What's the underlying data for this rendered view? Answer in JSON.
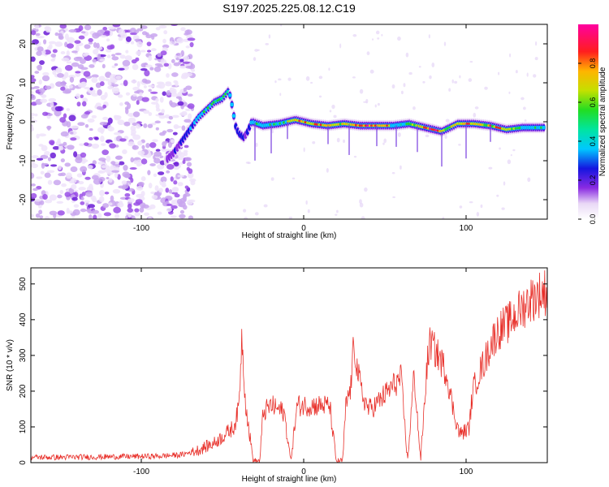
{
  "title": "S197.2025.225.08.12.C19",
  "chart_data": [
    {
      "type": "heatmap",
      "xlabel": "Height of straight line (km)",
      "ylabel": "Frequency (Hz)",
      "xlim": [
        -168,
        150
      ],
      "ylim": [
        -25,
        25
      ],
      "xticks": [
        -100,
        0,
        100
      ],
      "xtick_labels": [
        "-100",
        "0",
        "100"
      ],
      "yticks": [
        -20,
        -10,
        0,
        10,
        20
      ],
      "ytick_labels": [
        "-20",
        "-10",
        "0",
        "10",
        "20"
      ],
      "colorbar": {
        "label": "Normalized spectral amplitude",
        "range": [
          0,
          1
        ],
        "ticks": [
          0.0,
          0.2,
          0.4,
          0.6,
          0.8
        ],
        "tick_labels": [
          "0.0",
          "0.2",
          "0.4",
          "0.6",
          "0.8"
        ]
      },
      "ridge": {
        "x": [
          -85,
          -80,
          -75,
          -70,
          -65,
          -60,
          -55,
          -50,
          -46,
          -44,
          -42,
          -40,
          -37,
          -35,
          -32,
          -25,
          -15,
          -5,
          5,
          15,
          25,
          35,
          45,
          55,
          65,
          75,
          85,
          95,
          105,
          115,
          125,
          135,
          148
        ],
        "freq": [
          -10,
          -8,
          -5,
          -2,
          1,
          3,
          5,
          6,
          8,
          4,
          -1,
          -3,
          -4,
          -3,
          0,
          -1,
          -0.5,
          0.5,
          -0.5,
          -1,
          -0.5,
          -1,
          -1,
          -1,
          -0.5,
          -1.5,
          -2.5,
          -0.5,
          -0.5,
          -1,
          -2,
          -1.5,
          -1.5
        ]
      },
      "ridge_amplitude": {
        "x": [
          -85,
          -70,
          -60,
          -50,
          -45,
          -40,
          -35,
          -30,
          -20,
          -10,
          -5,
          0,
          10,
          20,
          30,
          40,
          50,
          55,
          60,
          70,
          75,
          80,
          90,
          100,
          110,
          120,
          130,
          148
        ],
        "amp": [
          0.15,
          0.35,
          0.55,
          0.6,
          0.45,
          0.3,
          0.3,
          0.5,
          0.5,
          0.6,
          0.75,
          0.85,
          0.8,
          0.75,
          0.75,
          0.95,
          0.9,
          0.5,
          0.55,
          0.65,
          0.9,
          0.95,
          0.65,
          0.85,
          0.7,
          0.8,
          0.6,
          0.5
        ]
      }
    },
    {
      "type": "line",
      "xlabel": "Height of straight line (km)",
      "ylabel": "SNR (10 * v/v)",
      "xlim": [
        -168,
        150
      ],
      "ylim": [
        0,
        545
      ],
      "xticks": [
        -100,
        0,
        100
      ],
      "xtick_labels": [
        "-100",
        "0",
        "100"
      ],
      "yticks": [
        0,
        100,
        200,
        300,
        400,
        500
      ],
      "ytick_labels": [
        "0",
        "100",
        "200",
        "300",
        "400",
        "500"
      ],
      "series": [
        {
          "name": "SNR",
          "color": "#e8302a",
          "x": [
            -168,
            -150,
            -130,
            -110,
            -90,
            -75,
            -65,
            -55,
            -48,
            -43,
            -40,
            -38,
            -36,
            -34,
            -31,
            -27,
            -25,
            -20,
            -16,
            -12,
            -8,
            -4,
            0,
            8,
            16,
            20,
            24,
            26,
            29,
            31,
            33,
            36,
            40,
            44,
            48,
            52,
            56,
            60,
            64,
            68,
            72,
            76,
            78,
            80,
            84,
            88,
            92,
            96,
            100,
            102,
            104,
            108,
            112,
            116,
            120,
            126,
            132,
            138,
            144,
            150
          ],
          "y": [
            15,
            15,
            16,
            17,
            18,
            22,
            35,
            55,
            80,
            100,
            150,
            360,
            180,
            100,
            5,
            5,
            140,
            160,
            150,
            140,
            5,
            160,
            160,
            160,
            160,
            5,
            5,
            160,
            210,
            340,
            260,
            190,
            150,
            160,
            180,
            200,
            220,
            235,
            5,
            250,
            5,
            275,
            340,
            320,
            290,
            250,
            150,
            80,
            90,
            100,
            200,
            250,
            290,
            340,
            370,
            390,
            420,
            450,
            470,
            480
          ]
        }
      ],
      "noise_amplitude": 12
    }
  ]
}
